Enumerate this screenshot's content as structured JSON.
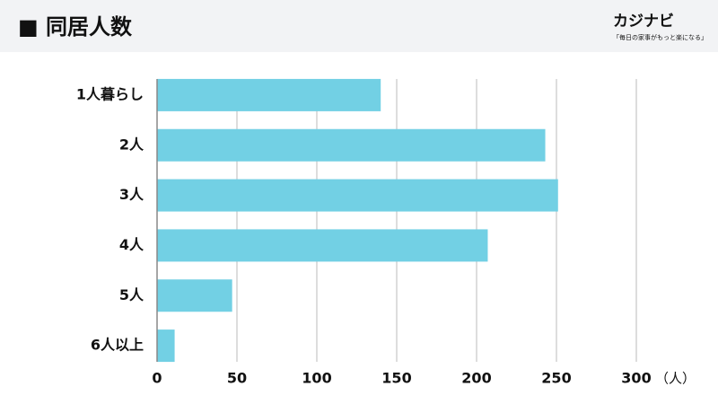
{
  "chart_data": {
    "type": "barh",
    "title": "■ 同居人数",
    "brand": "カジナビ",
    "tagline": "「毎日の家事がもっと楽になる」",
    "xlabel": "（人）",
    "categories": [
      "1人暮らし",
      "2人",
      "3人",
      "4人",
      "5人",
      "6人以上"
    ],
    "values": [
      140,
      243,
      251,
      207,
      47,
      11
    ],
    "color": "#72d0e4",
    "xlim": [
      0,
      300
    ],
    "xticks": [
      0,
      50,
      100,
      150,
      200,
      250,
      300
    ],
    "grid": true
  }
}
